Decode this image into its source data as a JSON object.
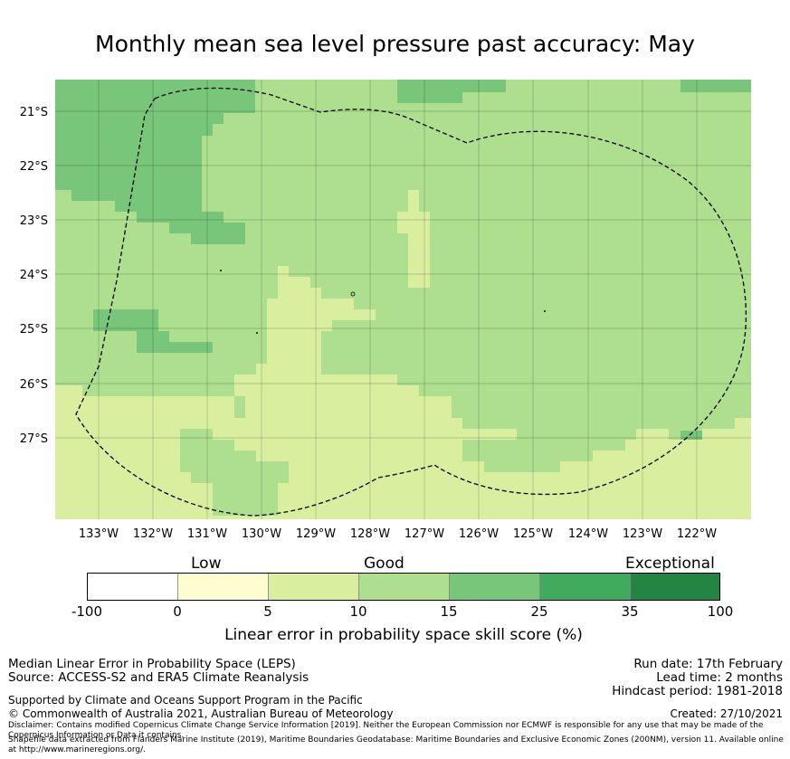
{
  "title": "Monthly mean sea level pressure past accuracy: May",
  "map": {
    "lat_labels": [
      "21°S",
      "22°S",
      "23°S",
      "24°S",
      "25°S",
      "26°S",
      "27°S"
    ],
    "lon_labels": [
      "133°W",
      "132°W",
      "131°W",
      "130°W",
      "129°W",
      "128°W",
      "127°W",
      "126°W",
      "125°W",
      "124°W",
      "123°W",
      "122°W"
    ]
  },
  "colorbar": {
    "categories": [
      "Low",
      "Good",
      "Exceptional"
    ],
    "ticks": [
      "-100",
      "0",
      "5",
      "10",
      "15",
      "25",
      "35",
      "100"
    ],
    "colors": [
      "#ffffff",
      "#fefdd0",
      "#d9ee9f",
      "#addf8e",
      "#78c679",
      "#41ab5d",
      "#238443"
    ],
    "label": "Linear error in probability space skill score (%)"
  },
  "footer": {
    "left_line1": "Median Linear Error in Probability Space (LEPS)",
    "left_line2": "Source: ACCESS-S2 and ERA5 Climate Reanalysis",
    "right_line1": "Run date: 17th February",
    "right_line2": "Lead time: 2 months",
    "right_line3": "Hindcast period: 1981-2018",
    "supported": "Supported by Climate and Oceans Support Program in the Pacific",
    "copyright": "© Commonwealth of Australia 2021, Australian Bureau of Meteorology",
    "created": "Created: 27/10/2021",
    "disclaimer": "Disclaimer: Contains modified Copernicus Climate Change Service Information [2019]. Neither the European Commission nor ECMWF is responsible for any use that may be made of the Copernicus Information or Data it contains.",
    "shapefile": "Shapefile data extracted from Flanders Marine Institute (2019), Maritime Boundaries Geodatabase: Maritime Boundaries and Exclusive Economic Zones (200NM), version 11. Available online at http://www.marineregions.org/."
  }
}
